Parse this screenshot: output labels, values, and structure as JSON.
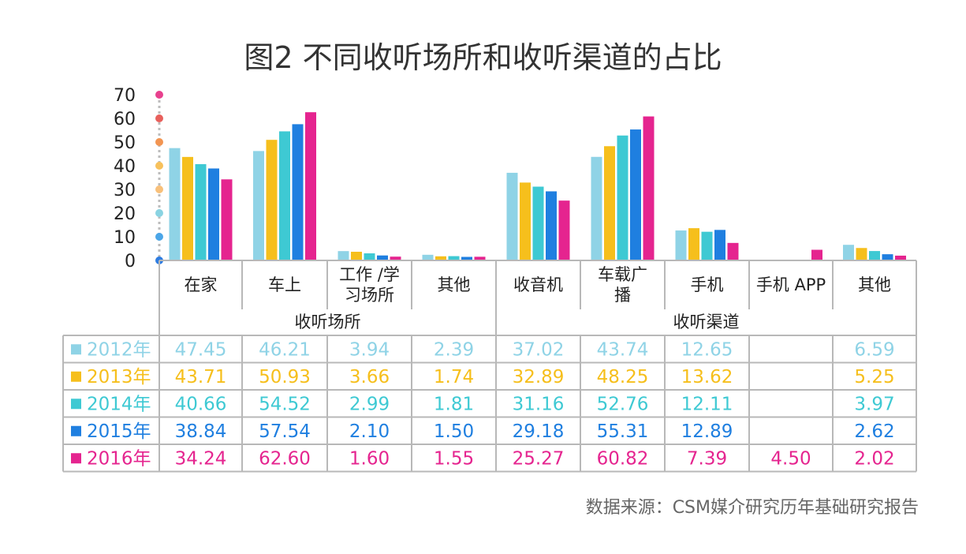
{
  "title": "图2 不同收听场所和收听渠道的占比",
  "source": "数据来源：CSM媒介研究历年基础研究报告",
  "chart_data": {
    "type": "bar",
    "ylim": [
      0,
      70
    ],
    "yticks": [
      "0",
      "10",
      "20",
      "30",
      "40",
      "50",
      "60",
      "70"
    ],
    "categories": [
      {
        "lines": [
          "在家"
        ]
      },
      {
        "lines": [
          "车上"
        ]
      },
      {
        "lines": [
          "工作 /学",
          "习场所"
        ]
      },
      {
        "lines": [
          "其他"
        ]
      },
      {
        "lines": [
          "收音机"
        ]
      },
      {
        "lines": [
          "车载广",
          "播"
        ]
      },
      {
        "lines": [
          "手机"
        ]
      },
      {
        "lines": [
          "手机 APP"
        ]
      },
      {
        "lines": [
          "其他"
        ]
      }
    ],
    "groups": [
      {
        "label": "收听场所",
        "start": 0,
        "end": 3
      },
      {
        "label": "收听渠道",
        "start": 4,
        "end": 8
      }
    ],
    "series": [
      {
        "name": "2012年",
        "color": "#8fd3e6",
        "values": [
          47.45,
          46.21,
          3.94,
          2.39,
          37.02,
          43.74,
          12.65,
          null,
          6.59
        ],
        "labels": [
          "47.45",
          "46.21",
          "3.94",
          "2.39",
          "37.02",
          "43.74",
          "12.65",
          "",
          "6.59"
        ]
      },
      {
        "name": "2013年",
        "color": "#f6bf1c",
        "values": [
          43.71,
          50.93,
          3.66,
          1.74,
          32.89,
          48.25,
          13.62,
          null,
          5.25
        ],
        "labels": [
          "43.71",
          "50.93",
          "3.66",
          "1.74",
          "32.89",
          "48.25",
          "13.62",
          "",
          "5.25"
        ]
      },
      {
        "name": "2014年",
        "color": "#3ec9d3",
        "values": [
          40.66,
          54.52,
          2.99,
          1.81,
          31.16,
          52.76,
          12.11,
          null,
          3.97
        ],
        "labels": [
          "40.66",
          "54.52",
          "2.99",
          "1.81",
          "31.16",
          "52.76",
          "12.11",
          "",
          "3.97"
        ]
      },
      {
        "name": "2015年",
        "color": "#1f7fe0",
        "values": [
          38.84,
          57.54,
          2.1,
          1.5,
          29.18,
          55.31,
          12.89,
          null,
          2.62
        ],
        "labels": [
          "38.84",
          "57.54",
          "2.10",
          "1.50",
          "29.18",
          "55.31",
          "12.89",
          "",
          "2.62"
        ]
      },
      {
        "name": "2016年",
        "color": "#e5248f",
        "values": [
          34.24,
          62.6,
          1.6,
          1.55,
          25.27,
          60.82,
          7.39,
          4.5,
          2.02
        ],
        "labels": [
          "34.24",
          "62.60",
          "1.60",
          "1.55",
          "25.27",
          "60.82",
          "7.39",
          "4.50",
          "2.02"
        ]
      }
    ],
    "axis_dot_colors": [
      "#2f7de1",
      "#4ba6e8",
      "#8ad3e2",
      "#f8c07a",
      "#f7c15c",
      "#f29552",
      "#e8605c",
      "#e8418e"
    ]
  }
}
